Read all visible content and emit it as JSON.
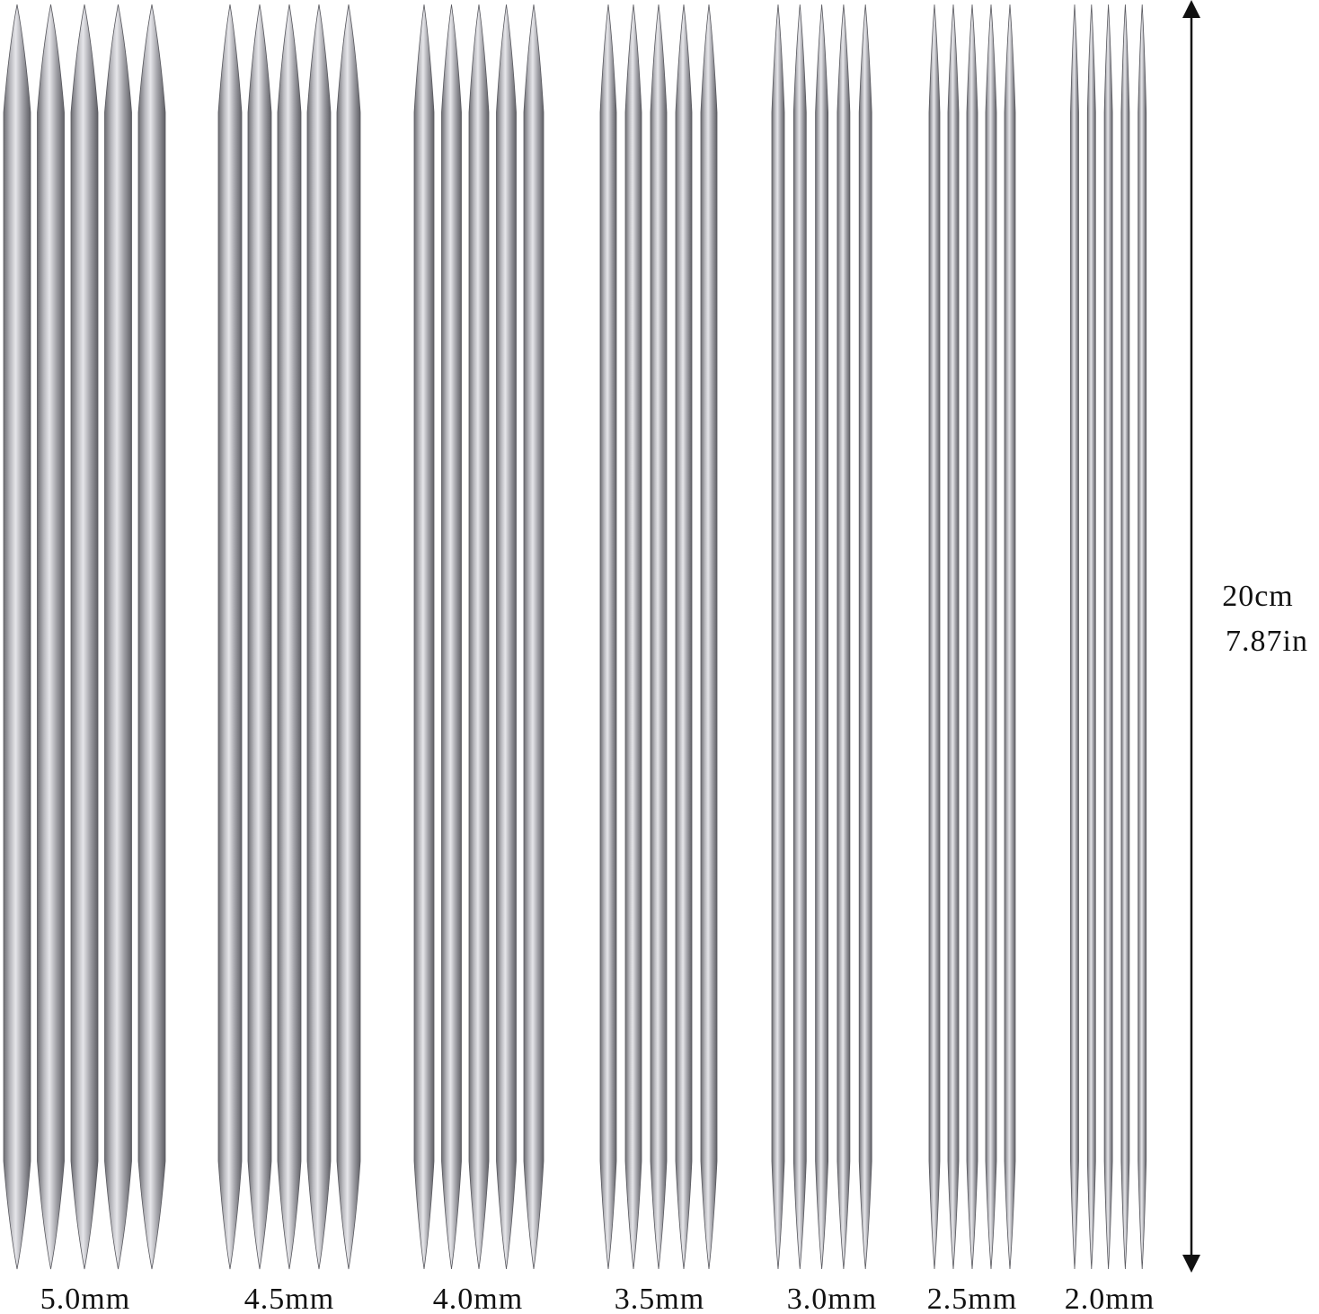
{
  "groups": [
    {
      "label": "5.0mm"
    },
    {
      "label": "4.5mm"
    },
    {
      "label": "4.0mm"
    },
    {
      "label": "3.5mm"
    },
    {
      "label": "3.0mm"
    },
    {
      "label": "2.5mm"
    },
    {
      "label": "2.0mm"
    }
  ],
  "dimension": {
    "length_cm": "20cm",
    "length_in": "7.87in"
  }
}
